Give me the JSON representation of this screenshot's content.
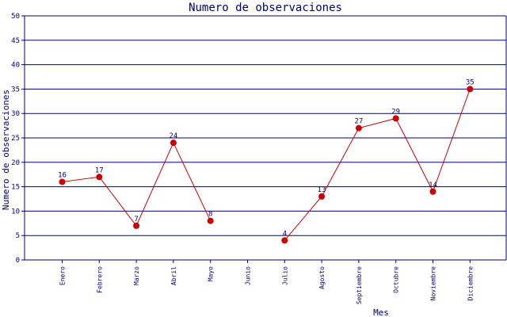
{
  "chart_data": {
    "type": "line",
    "title": "Numero de observaciones",
    "xlabel": "Mes",
    "ylabel": "Numero de observaciones",
    "categories": [
      "Enero",
      "Febrero",
      "Marzo",
      "Abril",
      "Mayo",
      "Junio",
      "Julio",
      "Agosto",
      "Septiembre",
      "Octubre",
      "Noviembre",
      "Diciembre"
    ],
    "series": [
      {
        "values": [
          16,
          17,
          7,
          24,
          8,
          null,
          4,
          13,
          27,
          29,
          14,
          35
        ]
      }
    ],
    "ylim": [
      0,
      50
    ],
    "yticks": [
      0,
      5,
      10,
      15,
      20,
      25,
      30,
      35,
      40,
      45,
      50
    ],
    "grid": true,
    "data_labels": true,
    "colors": {
      "line": "#cc0000",
      "marker": "#cc0000",
      "grid": "#000080",
      "text": "#000080"
    }
  }
}
